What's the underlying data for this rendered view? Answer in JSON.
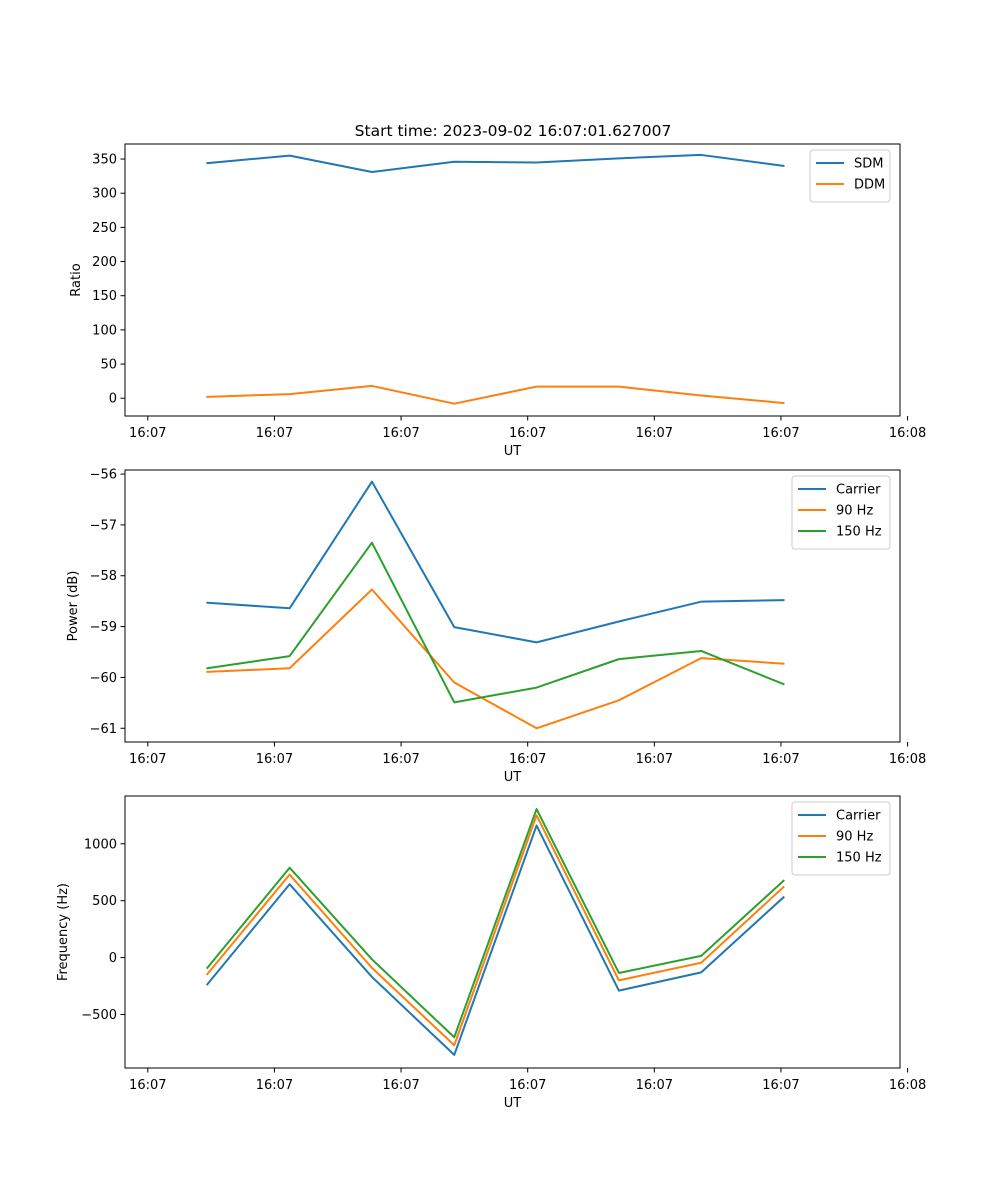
{
  "title": "Start time: 2023-09-02 16:07:01.627007",
  "colors": {
    "series1": "#1f77b4",
    "series2": "#ff7f0e",
    "series3": "#2ca02c"
  },
  "chart_data": [
    {
      "type": "line",
      "xlabel": "UT",
      "ylabel": "Ratio",
      "xlim": [
        0,
        6.12
      ],
      "ylim": [
        -26,
        372
      ],
      "x_ticks": [
        0.18,
        1.18,
        2.18,
        3.18,
        4.18,
        5.18,
        6.18
      ],
      "x_tick_labels": [
        "16:07",
        "16:07",
        "16:07",
        "16:07",
        "16:07",
        "16:07",
        "16:08"
      ],
      "y_ticks": [
        0,
        50,
        100,
        150,
        200,
        250,
        300,
        350
      ],
      "y_tick_labels": [
        "0",
        "50",
        "100",
        "150",
        "200",
        "250",
        "300",
        "350"
      ],
      "x": [
        0.65,
        1.3,
        1.95,
        2.6,
        3.25,
        3.9,
        4.55,
        5.2
      ],
      "series": [
        {
          "name": "SDM",
          "color": "#1f77b4",
          "values": [
            344,
            355,
            331,
            346,
            345,
            351,
            356,
            340
          ]
        },
        {
          "name": "DDM",
          "color": "#ff7f0e",
          "values": [
            2,
            6,
            18,
            -8,
            17,
            17,
            4,
            -7
          ]
        }
      ],
      "legend": "top-right"
    },
    {
      "type": "line",
      "xlabel": "UT",
      "ylabel": "Power (dB)",
      "xlim": [
        0,
        6.12
      ],
      "ylim": [
        -61.27,
        -55.92
      ],
      "x_ticks": [
        0.18,
        1.18,
        2.18,
        3.18,
        4.18,
        5.18,
        6.18
      ],
      "x_tick_labels": [
        "16:07",
        "16:07",
        "16:07",
        "16:07",
        "16:07",
        "16:07",
        "16:08"
      ],
      "y_ticks": [
        -61,
        -60,
        -59,
        -58,
        -57,
        -56
      ],
      "y_tick_labels": [
        "−61",
        "−60",
        "−59",
        "−58",
        "−57",
        "−56"
      ],
      "x": [
        0.65,
        1.3,
        1.95,
        2.6,
        3.25,
        3.9,
        4.55,
        5.2
      ],
      "series": [
        {
          "name": "Carrier",
          "color": "#1f77b4",
          "values": [
            -58.53,
            -58.64,
            -56.15,
            -59.01,
            -59.31,
            -58.9,
            -58.51,
            -58.48
          ]
        },
        {
          "name": "90 Hz",
          "color": "#ff7f0e",
          "values": [
            -59.89,
            -59.82,
            -58.27,
            -60.1,
            -61.0,
            -60.45,
            -59.62,
            -59.73
          ]
        },
        {
          "name": "150 Hz",
          "color": "#2ca02c",
          "values": [
            -59.82,
            -59.58,
            -57.35,
            -60.49,
            -60.2,
            -59.64,
            -59.48,
            -60.13
          ]
        }
      ],
      "legend": "top-right"
    },
    {
      "type": "line",
      "xlabel": "UT",
      "ylabel": "Frequency (Hz)",
      "xlim": [
        0,
        6.12
      ],
      "ylim": [
        -970,
        1420
      ],
      "x_ticks": [
        0.18,
        1.18,
        2.18,
        3.18,
        4.18,
        5.18,
        6.18
      ],
      "x_tick_labels": [
        "16:07",
        "16:07",
        "16:07",
        "16:07",
        "16:07",
        "16:07",
        "16:08"
      ],
      "y_ticks": [
        -500,
        0,
        500,
        1000
      ],
      "y_tick_labels": [
        "−500",
        "0",
        "500",
        "1000"
      ],
      "x": [
        0.65,
        1.3,
        1.95,
        2.6,
        3.25,
        3.9,
        4.55,
        5.2
      ],
      "series": [
        {
          "name": "Carrier",
          "color": "#1f77b4",
          "values": [
            -235,
            645,
            -170,
            -855,
            1160,
            -290,
            -130,
            530
          ]
        },
        {
          "name": "90 Hz",
          "color": "#ff7f0e",
          "values": [
            -145,
            730,
            -90,
            -770,
            1250,
            -200,
            -45,
            620
          ]
        },
        {
          "name": "150 Hz",
          "color": "#2ca02c",
          "values": [
            -90,
            790,
            -15,
            -700,
            1305,
            -135,
            15,
            675
          ]
        }
      ],
      "legend": "top-right"
    }
  ]
}
